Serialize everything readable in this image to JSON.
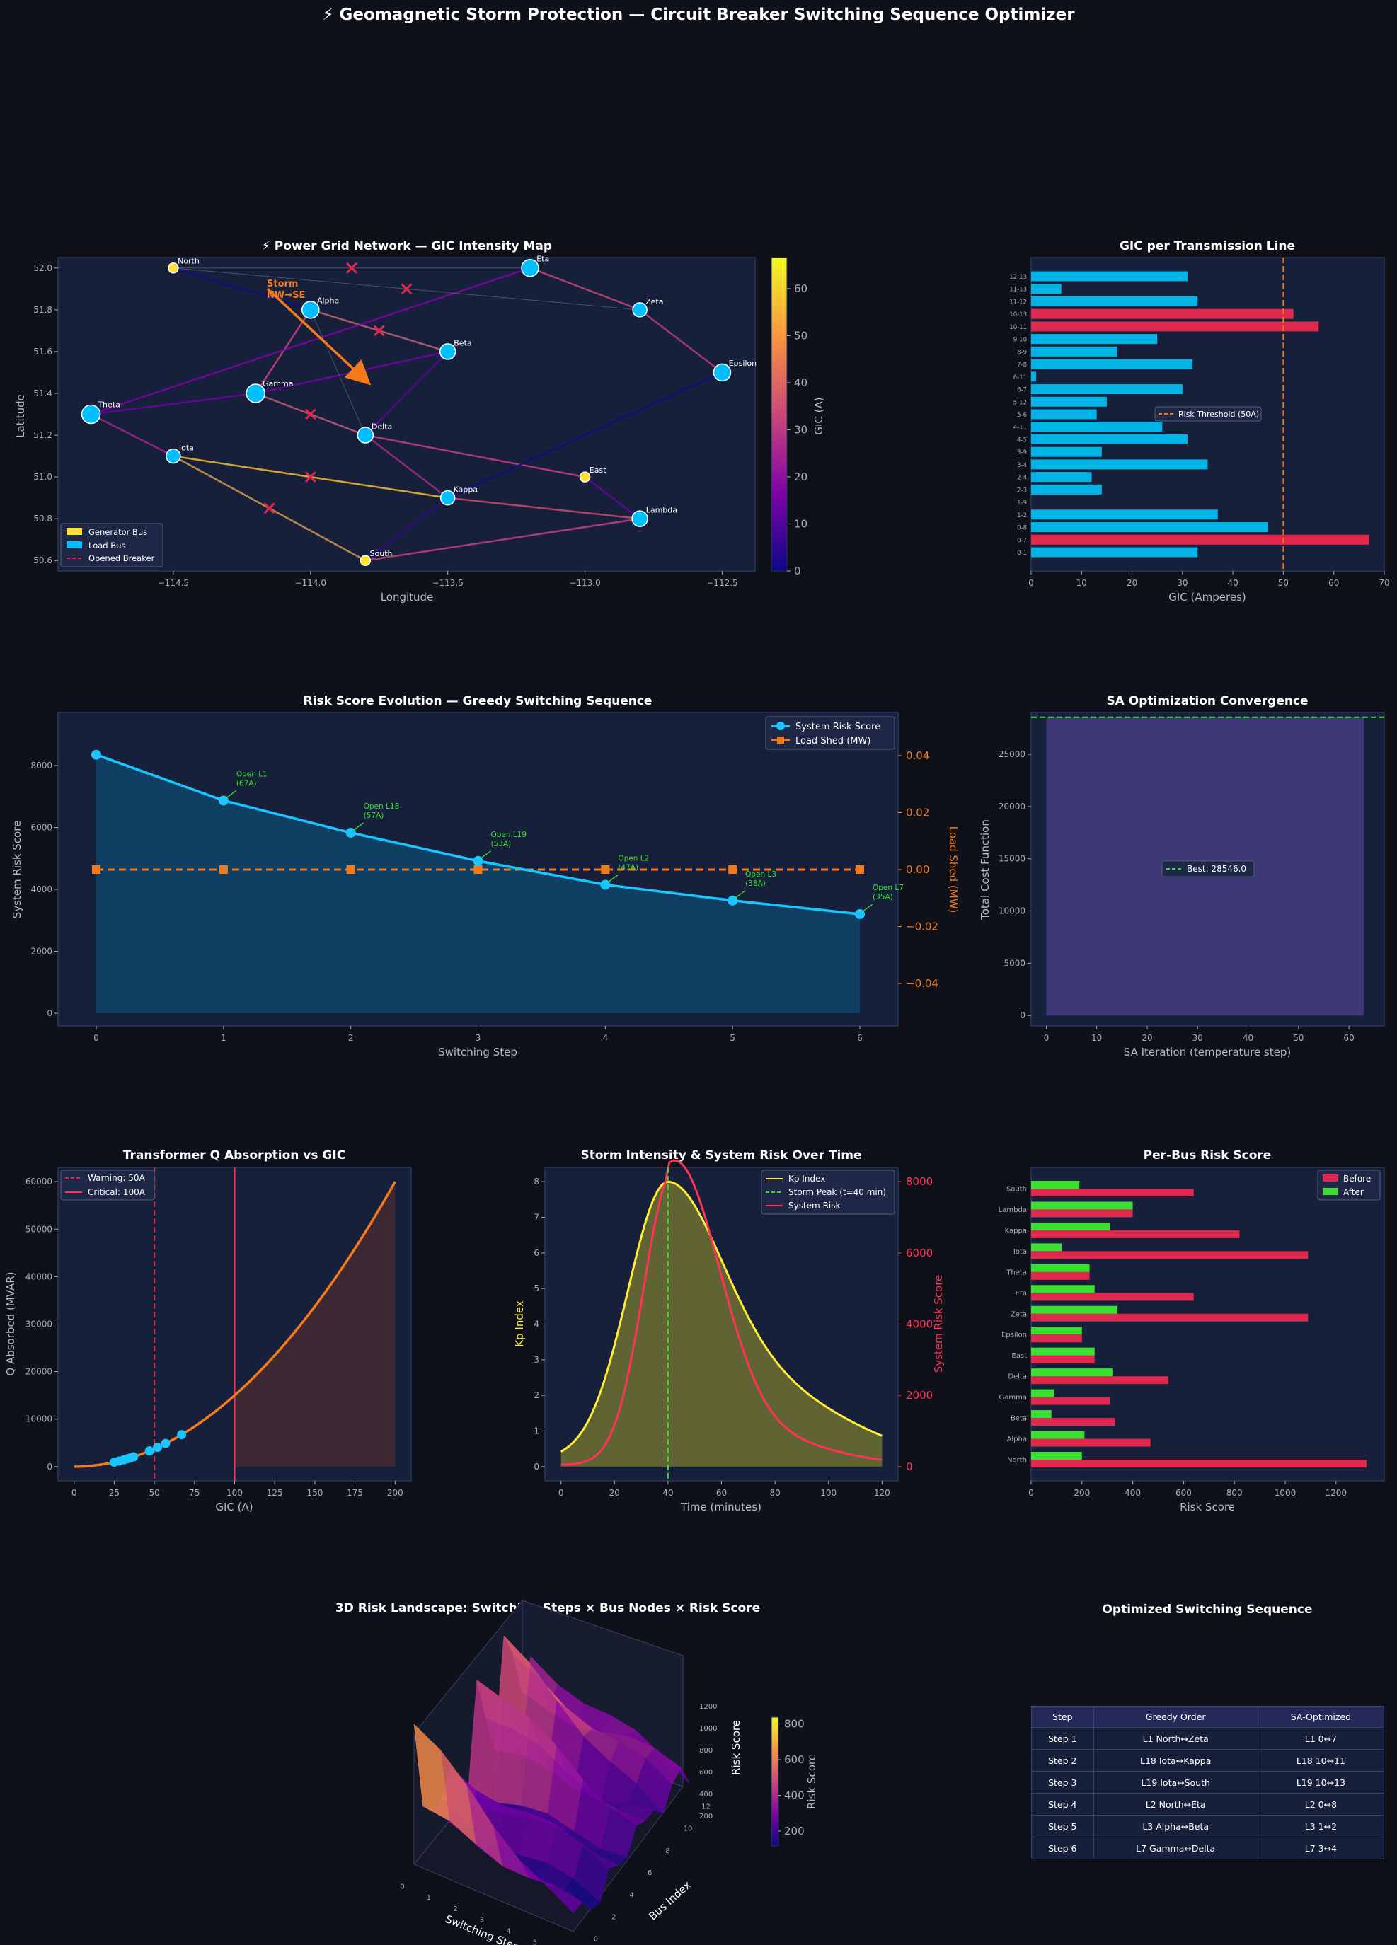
{
  "title": "⚡ Geomagnetic Storm Protection — Circuit Breaker Switching Sequence Optimizer",
  "colors": {
    "background": "#0f111a",
    "panel": "#16203a",
    "cyan": "#00bfff",
    "red": "#e0284e",
    "orange": "#f57a1a",
    "green": "#39e02f",
    "yellow": "#ffee33",
    "gen_bus": "#ffe033"
  },
  "network_map": {
    "title": "⚡ Power Grid Network — GIC Intensity Map",
    "xlabel": "Longitude",
    "ylabel": "Latitude",
    "colorbar_label": "GIC (A)",
    "xticks": [
      "−114.5",
      "−114.0",
      "−113.5",
      "−113.0",
      "−112.5"
    ],
    "yticks": [
      "50.6",
      "50.8",
      "51.0",
      "51.2",
      "51.4",
      "51.6",
      "51.8",
      "52.0"
    ],
    "colorbar_ticks": [
      "0",
      "10",
      "20",
      "30",
      "40",
      "50",
      "60"
    ],
    "storm_label": "Storm\nNW→SE",
    "legend": [
      {
        "label": "Generator Bus",
        "icon": "yellow-patch-icon"
      },
      {
        "label": "Load Bus",
        "icon": "cyan-patch-icon"
      },
      {
        "label": "Opened Breaker",
        "icon": "red-dashed-line-icon"
      }
    ],
    "buses": [
      {
        "name": "North",
        "lon": -114.5,
        "lat": 52.0,
        "type": "gen"
      },
      {
        "name": "Alpha",
        "lon": -114.0,
        "lat": 51.8,
        "type": "load"
      },
      {
        "name": "Beta",
        "lon": -113.5,
        "lat": 51.6,
        "type": "load"
      },
      {
        "name": "Gamma",
        "lon": -114.2,
        "lat": 51.4,
        "type": "load"
      },
      {
        "name": "Delta",
        "lon": -113.8,
        "lat": 51.2,
        "type": "load"
      },
      {
        "name": "East",
        "lon": -113.0,
        "lat": 51.0,
        "type": "gen"
      },
      {
        "name": "Epsilon",
        "lon": -112.5,
        "lat": 51.5,
        "type": "load"
      },
      {
        "name": "Zeta",
        "lon": -112.8,
        "lat": 51.8,
        "type": "load"
      },
      {
        "name": "Eta",
        "lon": -113.2,
        "lat": 52.0,
        "type": "load"
      },
      {
        "name": "Theta",
        "lon": -114.8,
        "lat": 51.3,
        "type": "load"
      },
      {
        "name": "Iota",
        "lon": -114.5,
        "lat": 51.1,
        "type": "load"
      },
      {
        "name": "Kappa",
        "lon": -113.5,
        "lat": 50.9,
        "type": "load"
      },
      {
        "name": "Lambda",
        "lon": -112.8,
        "lat": 50.8,
        "type": "load"
      },
      {
        "name": "South",
        "lon": -113.8,
        "lat": 50.6,
        "type": "gen"
      }
    ],
    "active_lines": [
      {
        "from": 1,
        "to": 2,
        "gic": 38
      },
      {
        "from": 1,
        "to": 3,
        "gic": 33
      },
      {
        "from": 2,
        "to": 3,
        "gic": 15
      },
      {
        "from": 2,
        "to": 4,
        "gic": 12
      },
      {
        "from": 3,
        "to": 4,
        "gic": 35
      },
      {
        "from": 3,
        "to": 9,
        "gic": 14
      },
      {
        "from": 4,
        "to": 11,
        "gic": 26
      },
      {
        "from": 4,
        "to": 5,
        "gic": 32
      },
      {
        "from": 5,
        "to": 12,
        "gic": 13
      },
      {
        "from": 6,
        "to": 7,
        "gic": 30
      },
      {
        "from": 7,
        "to": 8,
        "gic": 33
      },
      {
        "from": 8,
        "to": 9,
        "gic": 17
      },
      {
        "from": 9,
        "to": 10,
        "gic": 25
      },
      {
        "from": 10,
        "to": 11,
        "gic": 57
      },
      {
        "from": 10,
        "to": 13,
        "gic": 53
      },
      {
        "from": 11,
        "to": 12,
        "gic": 34
      },
      {
        "from": 11,
        "to": 13,
        "gic": 6
      },
      {
        "from": 12,
        "to": 13,
        "gic": 32
      },
      {
        "from": 0,
        "to": 1,
        "gic": 1
      },
      {
        "from": 6,
        "to": 11,
        "gic": 1
      }
    ],
    "opened_lines": [
      {
        "from": 0,
        "to": 7
      },
      {
        "from": 0,
        "to": 8
      },
      {
        "from": 1,
        "to": 2
      },
      {
        "from": 1,
        "to": 4
      },
      {
        "from": 3,
        "to": 4
      },
      {
        "from": 10,
        "to": 13
      }
    ],
    "opened_markers": [
      {
        "lon": -113.85,
        "lat": 52.0
      },
      {
        "lon": -113.65,
        "lat": 51.9
      },
      {
        "lon": -113.75,
        "lat": 51.7
      },
      {
        "lon": -114.0,
        "lat": 51.3
      },
      {
        "lon": -114.0,
        "lat": 51.0
      },
      {
        "lon": -114.15,
        "lat": 50.85
      }
    ]
  },
  "gic_lines": {
    "title": "GIC per Transmission Line",
    "xlabel": "GIC (Amperes)",
    "threshold": 50,
    "threshold_label": "Risk Threshold (50A)",
    "categories": [
      "0-1",
      "0-7",
      "0-8",
      "1-2",
      "1-9",
      "2-3",
      "2-4",
      "3-4",
      "3-9",
      "4-5",
      "4-11",
      "5-6",
      "5-12",
      "6-7",
      "6-11",
      "7-8",
      "8-9",
      "9-10",
      "10-11",
      "10-13",
      "11-12",
      "11-13",
      "12-13"
    ],
    "values": [
      33,
      67,
      47,
      37,
      0,
      14,
      12,
      35,
      14,
      31,
      26,
      13,
      15,
      30,
      1,
      32,
      17,
      25,
      57,
      52,
      33,
      6,
      31
    ],
    "xticks": [
      "0",
      "10",
      "20",
      "30",
      "40",
      "50",
      "60",
      "70"
    ]
  },
  "risk_evolution": {
    "title": "Risk Score Evolution — Greedy Switching Sequence",
    "xlabel": "Switching Step",
    "ylabel": "System Risk Score",
    "y2label": "Load Shed (MW)",
    "legend": [
      "System Risk Score",
      "Load Shed (MW)"
    ],
    "steps": [
      0,
      1,
      2,
      3,
      4,
      5,
      6
    ],
    "risk": [
      8350,
      6870,
      5830,
      4920,
      4150,
      3640,
      3200
    ],
    "load_shed": [
      0,
      0,
      0,
      0,
      0,
      0,
      0
    ],
    "annotations": [
      "Open L1\n(67A)",
      "Open L18\n(57A)",
      "Open L19\n(53A)",
      "Open L2\n(47A)",
      "Open L3\n(38A)",
      "Open L7\n(35A)"
    ],
    "yticks": [
      "0",
      "2000",
      "4000",
      "6000",
      "8000"
    ],
    "y2ticks": [
      "0.04",
      "0.02",
      "0.00",
      "−0.02",
      "−0.04"
    ]
  },
  "sa_convergence": {
    "title": "SA Optimization Convergence",
    "xlabel": "SA Iteration (temperature step)",
    "ylabel": "Total Cost Function",
    "best": 28546.0,
    "best_label": "Best: 28546.0",
    "yticks": [
      "0",
      "5000",
      "10000",
      "15000",
      "20000",
      "25000"
    ],
    "xticks": [
      "0",
      "10",
      "20",
      "30",
      "40",
      "50",
      "60"
    ]
  },
  "transformer_q": {
    "title": "Transformer Q Absorption vs GIC",
    "xlabel": "GIC (A)",
    "ylabel": "Q Absorbed (MVAR)",
    "legend": [
      "Warning: 50A",
      "Critical: 100A"
    ],
    "points_gic": [
      25,
      28,
      31,
      33,
      35,
      37,
      47,
      52,
      57,
      67
    ],
    "yticks": [
      "0",
      "10000",
      "20000",
      "30000",
      "40000",
      "50000",
      "60000"
    ],
    "xticks": [
      "0",
      "25",
      "50",
      "75",
      "100",
      "125",
      "150",
      "175",
      "200"
    ]
  },
  "storm_time": {
    "title": "Storm Intensity & System Risk Over Time",
    "xlabel": "Time (minutes)",
    "ylabel": "Kp Index",
    "y2label": "System Risk Score",
    "legend": [
      "Kp Index",
      "Storm Peak (t=40 min)",
      "System Risk"
    ],
    "peak": 40,
    "kp_max": 8,
    "risk_max": 8300,
    "xticks": [
      "0",
      "20",
      "40",
      "60",
      "80",
      "100",
      "120"
    ],
    "yticks": [
      "0",
      "1",
      "2",
      "3",
      "4",
      "5",
      "6",
      "7",
      "8"
    ],
    "y2ticks": [
      "0",
      "2000",
      "4000",
      "6000",
      "8000"
    ]
  },
  "bus_risk": {
    "title": "Per-Bus Risk Score",
    "xlabel": "Risk Score",
    "legend": [
      "Before",
      "After"
    ],
    "buses": [
      "North",
      "Alpha",
      "Beta",
      "Gamma",
      "Delta",
      "East",
      "Epsilon",
      "Zeta",
      "Eta",
      "Theta",
      "Iota",
      "Kappa",
      "Lambda",
      "South"
    ],
    "before": [
      1320,
      470,
      330,
      310,
      540,
      250,
      200,
      1090,
      640,
      230,
      1090,
      820,
      400,
      640
    ],
    "after": [
      200,
      210,
      80,
      90,
      320,
      250,
      200,
      340,
      250,
      230,
      120,
      310,
      400,
      190
    ],
    "xticks": [
      "0",
      "200",
      "400",
      "600",
      "800",
      "1000",
      "1200"
    ]
  },
  "landscape": {
    "title": "3D Risk Landscape: Switching Steps × Bus Nodes × Risk Score",
    "xlabel": "Switching Step",
    "ylabel": "Bus Index",
    "zlabel": "Risk Score",
    "colorbar_label": "Risk Score",
    "xticks": [
      "0",
      "1",
      "2",
      "3",
      "4",
      "5",
      "6"
    ],
    "yticks": [
      "0",
      "2",
      "4",
      "6",
      "8",
      "10",
      "12"
    ],
    "zticks": [
      "200",
      "400",
      "600",
      "800",
      "1000",
      "1200"
    ],
    "colorbar_ticks": [
      "200",
      "400",
      "600",
      "800"
    ]
  },
  "sequence_table": {
    "title": "Optimized Switching Sequence",
    "headers": [
      "Step",
      "Greedy Order",
      "SA-Optimized"
    ],
    "rows": [
      [
        "Step 1",
        "L1  North↔Zeta",
        "L1  0↔7"
      ],
      [
        "Step 2",
        "L18  Iota↔Kappa",
        "L18  10↔11"
      ],
      [
        "Step 3",
        "L19  Iota↔South",
        "L19  10↔13"
      ],
      [
        "Step 4",
        "L2  North↔Eta",
        "L2  0↔8"
      ],
      [
        "Step 5",
        "L3  Alpha↔Beta",
        "L3  1↔2"
      ],
      [
        "Step 6",
        "L7  Gamma↔Delta",
        "L7  3↔4"
      ]
    ]
  },
  "chart_data": [
    {
      "type": "scatter",
      "title": "⚡ Power Grid Network — GIC Intensity Map",
      "xlabel": "Longitude",
      "ylabel": "Latitude",
      "xlim": [
        -114.92,
        -112.38
      ],
      "ylim": [
        50.55,
        52.05
      ]
    },
    {
      "type": "bar",
      "title": "GIC per Transmission Line",
      "xlabel": "GIC (Amperes)",
      "categories": [
        "0-1",
        "0-7",
        "0-8",
        "1-2",
        "1-9",
        "2-3",
        "2-4",
        "3-4",
        "3-9",
        "4-5",
        "4-11",
        "5-6",
        "5-12",
        "6-7",
        "6-11",
        "7-8",
        "8-9",
        "9-10",
        "10-11",
        "10-13",
        "11-12",
        "11-13",
        "12-13"
      ],
      "values": [
        33,
        67,
        47,
        37,
        0,
        14,
        12,
        35,
        14,
        31,
        26,
        13,
        15,
        30,
        1,
        32,
        17,
        25,
        57,
        52,
        33,
        6,
        31
      ],
      "xlim": [
        0,
        70
      ]
    },
    {
      "type": "line",
      "title": "Risk Score Evolution — Greedy Switching Sequence",
      "xlabel": "Switching Step",
      "ylabel": "System Risk Score",
      "x": [
        0,
        1,
        2,
        3,
        4,
        5,
        6
      ],
      "series": [
        {
          "name": "System Risk Score",
          "values": [
            8350,
            6870,
            5830,
            4920,
            4150,
            3640,
            3200
          ]
        },
        {
          "name": "Load Shed (MW)",
          "values": [
            0,
            0,
            0,
            0,
            0,
            0,
            0
          ]
        }
      ]
    },
    {
      "type": "line",
      "title": "SA Optimization Convergence",
      "xlabel": "SA Iteration (temperature step)",
      "ylabel": "Total Cost Function",
      "xlim": [
        -3,
        67
      ],
      "ylim": [
        -1000,
        29000
      ]
    },
    {
      "type": "line",
      "title": "Transformer Q Absorption vs GIC",
      "xlabel": "GIC (A)",
      "ylabel": "Q Absorbed (MVAR)",
      "xlim": [
        -10,
        210
      ],
      "ylim": [
        -3000,
        63000
      ]
    },
    {
      "type": "line",
      "title": "Storm Intensity & System Risk Over Time",
      "xlabel": "Time (minutes)",
      "xlim": [
        -6,
        126
      ],
      "ylim": [
        -0.4,
        8.4
      ]
    },
    {
      "type": "bar",
      "title": "Per-Bus Risk Score",
      "xlabel": "Risk Score",
      "categories": [
        "North",
        "Alpha",
        "Beta",
        "Gamma",
        "Delta",
        "East",
        "Epsilon",
        "Zeta",
        "Eta",
        "Theta",
        "Iota",
        "Kappa",
        "Lambda",
        "South"
      ],
      "series": [
        {
          "name": "Before",
          "values": [
            1320,
            470,
            330,
            310,
            540,
            250,
            200,
            1090,
            640,
            230,
            1090,
            820,
            400,
            640
          ]
        },
        {
          "name": "After",
          "values": [
            200,
            210,
            80,
            90,
            320,
            250,
            200,
            340,
            250,
            230,
            120,
            310,
            400,
            190
          ]
        }
      ],
      "xlim": [
        0,
        1390
      ]
    },
    {
      "type": "heatmap",
      "title": "3D Risk Landscape: Switching Steps × Bus Nodes × Risk Score",
      "xlabel": "Switching Step",
      "ylabel": "Bus Index"
    }
  ]
}
